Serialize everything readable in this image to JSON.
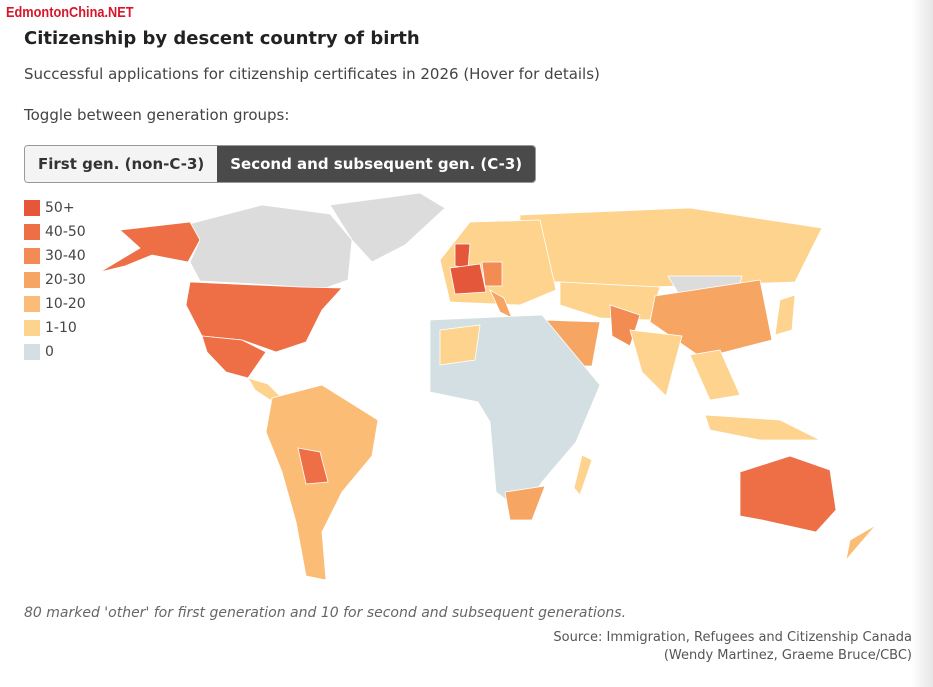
{
  "watermark": "EdmontonChina.NET",
  "header": {
    "title": "Citizenship by descent country of birth",
    "subtitle": "Successful applications for citizenship certificates in 2026 (Hover for details)",
    "toggle_prompt": "Toggle between generation groups:"
  },
  "toggle": {
    "buttons": [
      "First gen. (non-C-3)",
      "Second and subsequent gen. (C-3)"
    ],
    "active": 1
  },
  "legend": {
    "items": [
      {
        "label": "50+",
        "color": "#e5573a"
      },
      {
        "label": "40-50",
        "color": "#ee6f45"
      },
      {
        "label": "30-40",
        "color": "#f38c52"
      },
      {
        "label": "20-30",
        "color": "#f7a563"
      },
      {
        "label": "10-20",
        "color": "#fbbd76"
      },
      {
        "label": "1-10",
        "color": "#fdd38e"
      },
      {
        "label": "0",
        "color": "#d3dfe2"
      }
    ]
  },
  "footer": {
    "note": "80 marked 'other' for first generation and 10 for second and subsequent generations.",
    "source": [
      "Source: Immigration, Refugees and Citizenship Canada",
      "(Wendy Martinez, Graeme Bruce/CBC)"
    ]
  }
}
